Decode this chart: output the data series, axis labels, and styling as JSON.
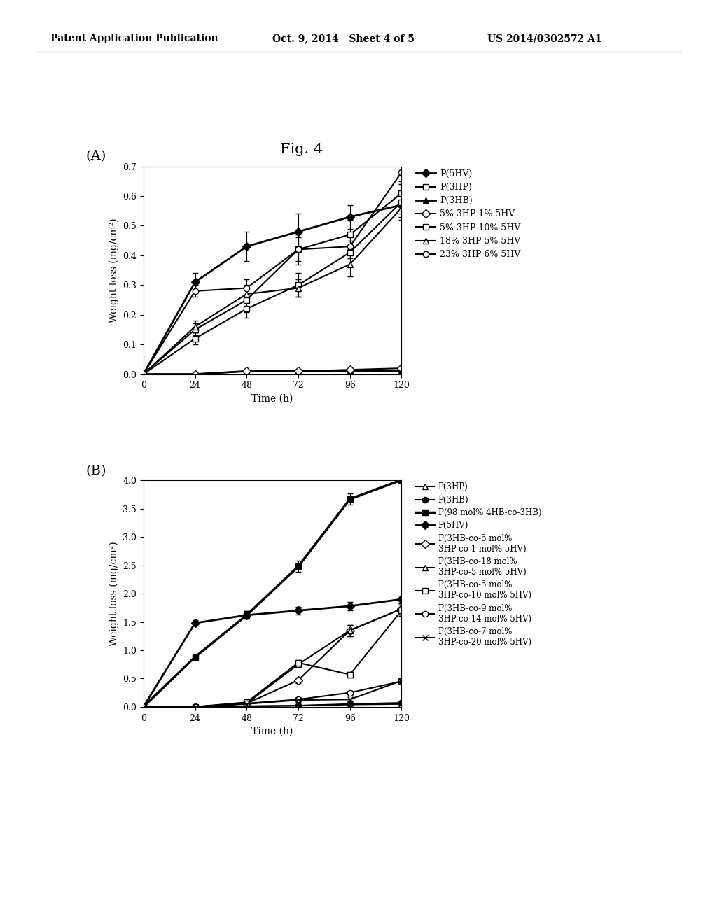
{
  "header_left": "Patent Application Publication",
  "header_mid": "Oct. 9, 2014   Sheet 4 of 5",
  "header_right": "US 2014/0302572 A1",
  "fig_title": "Fig. 4",
  "panel_A": {
    "label": "(A)",
    "xlabel": "Time (h)",
    "ylabel": "Weight loss (mg/cm²)",
    "xlim": [
      0,
      120
    ],
    "ylim": [
      0,
      0.7
    ],
    "xticks": [
      0,
      24,
      48,
      72,
      96,
      120
    ],
    "yticks": [
      0,
      0.1,
      0.2,
      0.3,
      0.4,
      0.5,
      0.6,
      0.7
    ],
    "series": [
      {
        "label": "P(5HV)",
        "x": [
          0,
          24,
          48,
          72,
          96,
          120
        ],
        "y": [
          0,
          0.31,
          0.43,
          0.48,
          0.53,
          0.57
        ],
        "yerr": [
          0,
          0.03,
          0.05,
          0.06,
          0.04,
          0.04
        ],
        "color": "black",
        "marker": "D",
        "fillstyle": "full",
        "linestyle": "-",
        "linewidth": 2
      },
      {
        "label": "P(3HP)",
        "x": [
          0,
          24,
          48,
          72,
          96,
          120
        ],
        "y": [
          0,
          0.15,
          0.25,
          0.42,
          0.47,
          0.61
        ],
        "yerr": [
          0,
          0.02,
          0.04,
          0.05,
          0.05,
          0.04
        ],
        "color": "black",
        "marker": "s",
        "fillstyle": "none",
        "linestyle": "-",
        "linewidth": 1.5
      },
      {
        "label": "P(3HB)",
        "x": [
          0,
          24,
          48,
          72,
          96,
          120
        ],
        "y": [
          0,
          0.0,
          0.01,
          0.01,
          0.01,
          0.01
        ],
        "yerr": [
          0,
          0.0,
          0.005,
          0.005,
          0.005,
          0.005
        ],
        "color": "black",
        "marker": "^",
        "fillstyle": "full",
        "linestyle": "-",
        "linewidth": 2
      },
      {
        "label": "5% 3HP 1% 5HV",
        "x": [
          0,
          24,
          48,
          72,
          96,
          120
        ],
        "y": [
          0,
          0.0,
          0.01,
          0.01,
          0.015,
          0.02
        ],
        "yerr": [
          0,
          0.0,
          0.005,
          0.005,
          0.005,
          0.005
        ],
        "color": "black",
        "marker": "D",
        "fillstyle": "none",
        "linestyle": "-",
        "linewidth": 1.5
      },
      {
        "label": "5% 3HP 10% 5HV",
        "x": [
          0,
          24,
          48,
          72,
          96,
          120
        ],
        "y": [
          0,
          0.12,
          0.22,
          0.3,
          0.41,
          0.58
        ],
        "yerr": [
          0,
          0.02,
          0.03,
          0.04,
          0.04,
          0.04
        ],
        "color": "black",
        "marker": "s",
        "fillstyle": "none",
        "linestyle": "-",
        "linewidth": 1.5
      },
      {
        "label": "18% 3HP 5% 5HV",
        "x": [
          0,
          24,
          48,
          72,
          96,
          120
        ],
        "y": [
          0,
          0.16,
          0.27,
          0.29,
          0.37,
          0.56
        ],
        "yerr": [
          0,
          0.02,
          0.03,
          0.03,
          0.04,
          0.04
        ],
        "color": "black",
        "marker": "^",
        "fillstyle": "none",
        "linestyle": "-",
        "linewidth": 1.5
      },
      {
        "label": "23% 3HP 6% 5HV",
        "x": [
          0,
          24,
          48,
          72,
          96,
          120
        ],
        "y": [
          0,
          0.28,
          0.29,
          0.42,
          0.43,
          0.68
        ],
        "yerr": [
          0,
          0.02,
          0.03,
          0.04,
          0.04,
          0.04
        ],
        "color": "black",
        "marker": "o",
        "fillstyle": "none",
        "linestyle": "-",
        "linewidth": 1.5
      }
    ]
  },
  "panel_B": {
    "label": "(B)",
    "xlabel": "Time (h)",
    "ylabel": "Weight loss (mg/cm²)",
    "xlim": [
      0,
      120
    ],
    "ylim": [
      0.0,
      4.0
    ],
    "xticks": [
      0,
      24,
      48,
      72,
      96,
      120
    ],
    "yticks": [
      0.0,
      0.5,
      1.0,
      1.5,
      2.0,
      2.5,
      3.0,
      3.5,
      4.0
    ],
    "series": [
      {
        "label": "P(3HP)",
        "x": [
          0,
          24,
          48,
          72,
          96,
          120
        ],
        "y": [
          0,
          0.0,
          0.01,
          0.02,
          0.04,
          0.05
        ],
        "yerr": [
          0,
          0.0,
          0.005,
          0.005,
          0.005,
          0.005
        ],
        "color": "black",
        "marker": "^",
        "fillstyle": "none",
        "linestyle": "-",
        "linewidth": 1.5
      },
      {
        "label": "P(3HB)",
        "x": [
          0,
          24,
          48,
          72,
          96,
          120
        ],
        "y": [
          0,
          0.0,
          0.01,
          0.02,
          0.05,
          0.07
        ],
        "yerr": [
          0,
          0.0,
          0.005,
          0.005,
          0.005,
          0.005
        ],
        "color": "black",
        "marker": "o",
        "fillstyle": "full",
        "linestyle": "-",
        "linewidth": 1.5
      },
      {
        "label": "P(98 mol% 4HB-co-3HB)",
        "x": [
          0,
          24,
          48,
          72,
          96,
          120
        ],
        "y": [
          0,
          0.88,
          1.62,
          2.48,
          3.67,
          4.01
        ],
        "yerr": [
          0,
          0.05,
          0.07,
          0.1,
          0.1,
          0.05
        ],
        "color": "black",
        "marker": "s",
        "fillstyle": "full",
        "linestyle": "-",
        "linewidth": 2.5
      },
      {
        "label": "P(5HV)",
        "x": [
          0,
          24,
          48,
          72,
          96,
          120
        ],
        "y": [
          0,
          1.48,
          1.62,
          1.7,
          1.78,
          1.9
        ],
        "yerr": [
          0,
          0.05,
          0.07,
          0.07,
          0.07,
          0.07
        ],
        "color": "black",
        "marker": "D",
        "fillstyle": "full",
        "linestyle": "-",
        "linewidth": 2
      },
      {
        "label": "P(3HB-co-5 mol%\n3HP-co-1 mol% 5HV)",
        "x": [
          0,
          24,
          48,
          72,
          96,
          120
        ],
        "y": [
          0,
          0.0,
          0.06,
          0.47,
          1.35,
          1.73
        ],
        "yerr": [
          0,
          0.0,
          0.01,
          0.05,
          0.1,
          0.1
        ],
        "color": "black",
        "marker": "D",
        "fillstyle": "none",
        "linestyle": "-",
        "linewidth": 1.5
      },
      {
        "label": "P(3HB-co-18 mol%\n3HP-co-5 mol% 5HV)",
        "x": [
          0,
          24,
          48,
          72,
          96,
          120
        ],
        "y": [
          0,
          0.0,
          0.06,
          0.75,
          1.35,
          1.73
        ],
        "yerr": [
          0,
          0.0,
          0.01,
          0.05,
          0.1,
          0.1
        ],
        "color": "black",
        "marker": "^",
        "fillstyle": "none",
        "linestyle": "-",
        "linewidth": 1.5
      },
      {
        "label": "P(3HB-co-5 mol%\n3HP-co-10 mol% 5HV)",
        "x": [
          0,
          24,
          48,
          72,
          96,
          120
        ],
        "y": [
          0,
          0.0,
          0.08,
          0.78,
          0.57,
          1.7
        ],
        "yerr": [
          0,
          0.0,
          0.01,
          0.05,
          0.05,
          0.1
        ],
        "color": "black",
        "marker": "s",
        "fillstyle": "none",
        "linestyle": "-",
        "linewidth": 1.5
      },
      {
        "label": "P(3HB-co-9 mol%\n3HP-co-14 mol% 5HV)",
        "x": [
          0,
          24,
          48,
          72,
          96,
          120
        ],
        "y": [
          0,
          0.0,
          0.06,
          0.13,
          0.25,
          0.45
        ],
        "yerr": [
          0,
          0.0,
          0.01,
          0.02,
          0.03,
          0.04
        ],
        "color": "black",
        "marker": "o",
        "fillstyle": "none",
        "linestyle": "-",
        "linewidth": 1.5
      },
      {
        "label": "P(3HB-co-7 mol%\n3HP-co-20 mol% 5HV)",
        "x": [
          0,
          24,
          48,
          72,
          96,
          120
        ],
        "y": [
          0,
          0.0,
          0.05,
          0.12,
          0.13,
          0.46
        ],
        "yerr": [
          0,
          0.0,
          0.01,
          0.02,
          0.02,
          0.04
        ],
        "color": "black",
        "marker": "x",
        "fillstyle": "full",
        "linestyle": "-",
        "linewidth": 1.5
      }
    ]
  }
}
